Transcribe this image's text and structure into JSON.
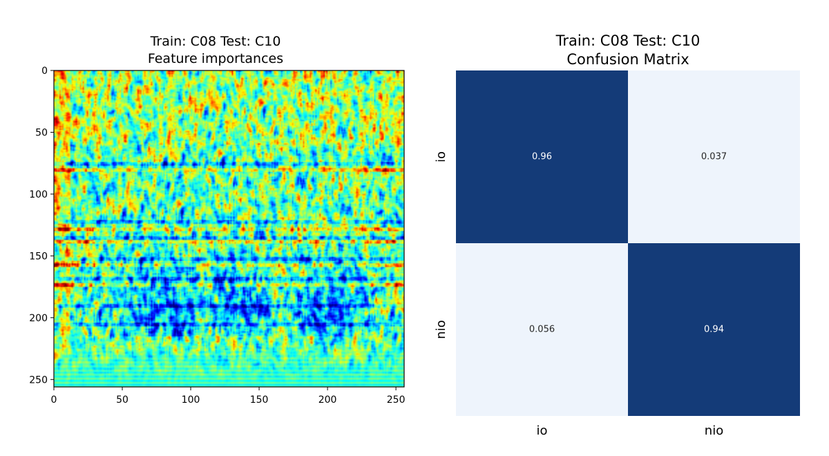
{
  "chart_data": [
    {
      "type": "heatmap",
      "title": "Train: C08 Test: C10",
      "subtitle": "Feature importances",
      "colormap": "jet",
      "xlim": [
        0,
        256
      ],
      "ylim": [
        256,
        0
      ],
      "xticks": [
        0,
        50,
        100,
        150,
        200,
        250
      ],
      "yticks": [
        0,
        50,
        100,
        150,
        200,
        250
      ],
      "xlabel": "",
      "ylabel": ""
    },
    {
      "type": "heatmap",
      "title": "Train: C08 Test: C10",
      "subtitle": "Confusion Matrix",
      "colormap": "Blues",
      "x_categories": [
        "io",
        "nio"
      ],
      "y_categories": [
        "io",
        "nio"
      ],
      "values": [
        [
          0.96,
          0.037
        ],
        [
          0.056,
          0.94
        ]
      ],
      "labels": [
        [
          "0.96",
          "0.037"
        ],
        [
          "0.056",
          "0.94"
        ]
      ],
      "colors": {
        "high": "#143b78",
        "low": "#eef4fc",
        "high_text": "#ffffff",
        "low_text": "#262626"
      }
    }
  ]
}
